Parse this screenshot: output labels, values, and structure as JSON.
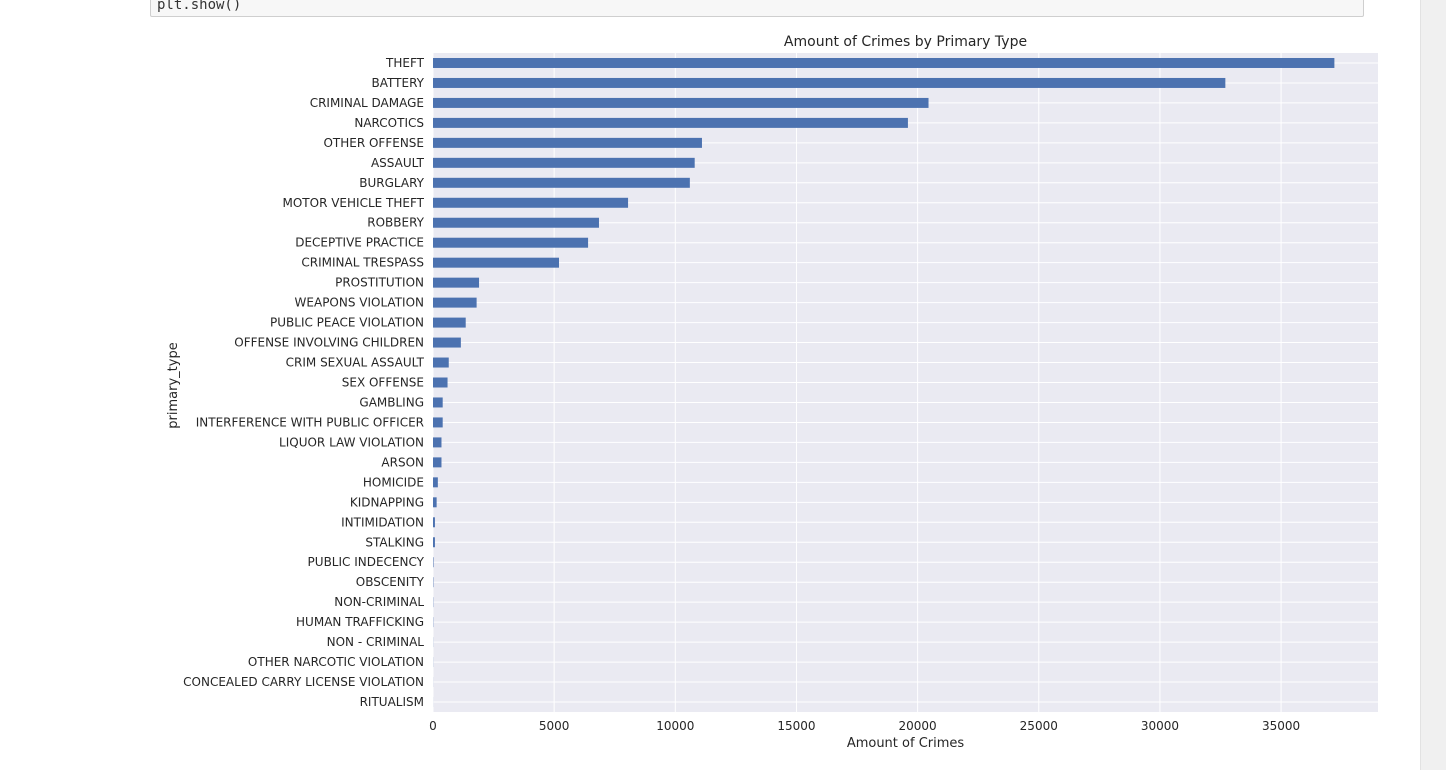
{
  "notebook": {
    "code_line": "plt.show()"
  },
  "colors": {
    "bar": "#4c72b0",
    "plot_background": "#eaeaf2",
    "grid": "#ffffff",
    "text": "#262626"
  },
  "chart_data": {
    "type": "bar",
    "orientation": "horizontal",
    "title": "Amount of Crimes by Primary Type",
    "xlabel": "Amount of Crimes",
    "ylabel": "primary_type",
    "xlim": [
      0,
      39000
    ],
    "xticks": [
      0,
      5000,
      10000,
      15000,
      20000,
      25000,
      30000,
      35000
    ],
    "grid": true,
    "categories": [
      "THEFT",
      "BATTERY",
      "CRIMINAL DAMAGE",
      "NARCOTICS",
      "OTHER OFFENSE",
      "ASSAULT",
      "BURGLARY",
      "MOTOR VEHICLE THEFT",
      "ROBBERY",
      "DECEPTIVE PRACTICE",
      "CRIMINAL TRESPASS",
      "PROSTITUTION",
      "WEAPONS VIOLATION",
      "PUBLIC PEACE VIOLATION",
      "OFFENSE INVOLVING CHILDREN",
      "CRIM SEXUAL ASSAULT",
      "SEX OFFENSE",
      "GAMBLING",
      "INTERFERENCE WITH PUBLIC OFFICER",
      "LIQUOR LAW VIOLATION",
      "ARSON",
      "HOMICIDE",
      "KIDNAPPING",
      "INTIMIDATION",
      "STALKING",
      "PUBLIC INDECENCY",
      "OBSCENITY",
      "NON-CRIMINAL",
      "HUMAN TRAFFICKING",
      "NON - CRIMINAL",
      "OTHER NARCOTIC VIOLATION",
      "CONCEALED CARRY LICENSE VIOLATION",
      "RITUALISM"
    ],
    "values": [
      37200,
      32700,
      20450,
      19600,
      11100,
      10800,
      10600,
      8050,
      6850,
      6400,
      5200,
      1900,
      1800,
      1350,
      1150,
      650,
      600,
      400,
      400,
      350,
      350,
      200,
      150,
      80,
      80,
      20,
      15,
      10,
      10,
      5,
      5,
      3,
      2
    ]
  }
}
